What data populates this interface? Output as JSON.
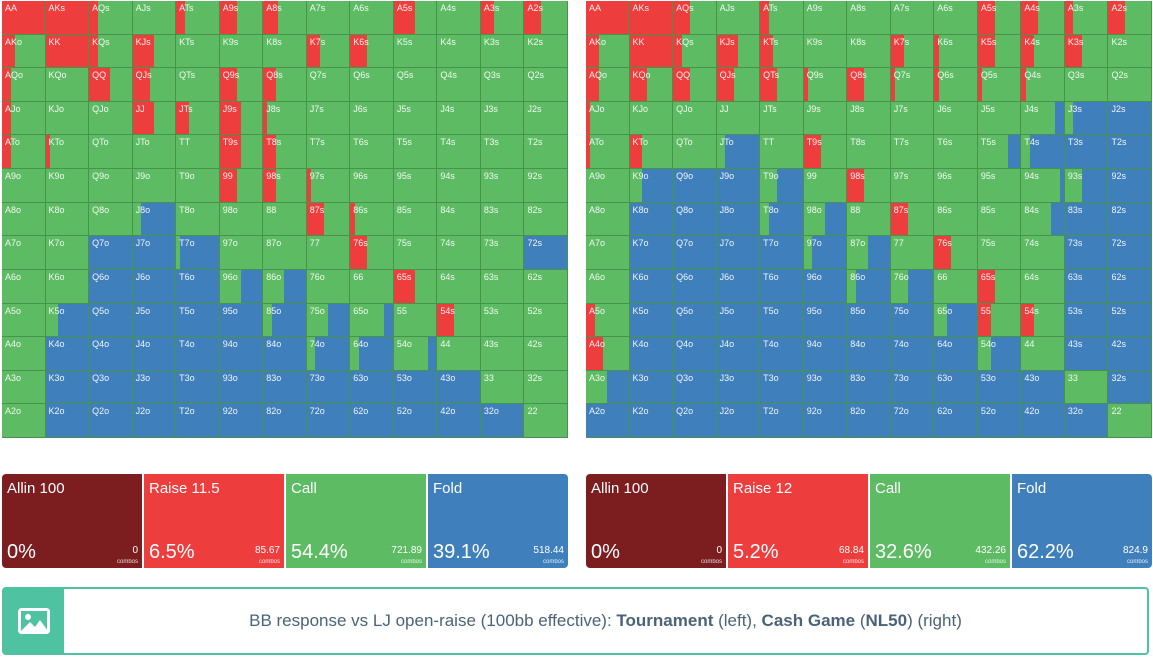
{
  "colors": {
    "allin": "#7c1d1f",
    "raise": "#ee3d3d",
    "call": "#5cbb63",
    "fold": "#3f7fbc",
    "accent": "#4fc3a1",
    "caption_text": "#4a6378"
  },
  "hand_labels": [
    [
      "AA",
      "AKs",
      "AQs",
      "AJs",
      "ATs",
      "A9s",
      "A8s",
      "A7s",
      "A6s",
      "A5s",
      "A4s",
      "A3s",
      "A2s"
    ],
    [
      "AKo",
      "KK",
      "KQs",
      "KJs",
      "KTs",
      "K9s",
      "K8s",
      "K7s",
      "K6s",
      "K5s",
      "K4s",
      "K3s",
      "K2s"
    ],
    [
      "AQo",
      "KQo",
      "QQ",
      "QJs",
      "QTs",
      "Q9s",
      "Q8s",
      "Q7s",
      "Q6s",
      "Q5s",
      "Q4s",
      "Q3s",
      "Q2s"
    ],
    [
      "AJo",
      "KJo",
      "QJo",
      "JJ",
      "JTs",
      "J9s",
      "J8s",
      "J7s",
      "J6s",
      "J5s",
      "J4s",
      "J3s",
      "J2s"
    ],
    [
      "ATo",
      "KTo",
      "QTo",
      "JTo",
      "TT",
      "T9s",
      "T8s",
      "T7s",
      "T6s",
      "T5s",
      "T4s",
      "T3s",
      "T2s"
    ],
    [
      "A9o",
      "K9o",
      "Q9o",
      "J9o",
      "T9o",
      "99",
      "98s",
      "97s",
      "96s",
      "95s",
      "94s",
      "93s",
      "92s"
    ],
    [
      "A8o",
      "K8o",
      "Q8o",
      "J8o",
      "T8o",
      "98o",
      "88",
      "87s",
      "86s",
      "85s",
      "84s",
      "83s",
      "82s"
    ],
    [
      "A7o",
      "K7o",
      "Q7o",
      "J7o",
      "T7o",
      "97o",
      "87o",
      "77",
      "76s",
      "75s",
      "74s",
      "73s",
      "72s"
    ],
    [
      "A6o",
      "K6o",
      "Q6o",
      "J6o",
      "T6o",
      "96o",
      "86o",
      "76o",
      "66",
      "65s",
      "64s",
      "63s",
      "62s"
    ],
    [
      "A5o",
      "K5o",
      "Q5o",
      "J5o",
      "T5o",
      "95o",
      "85o",
      "75o",
      "65o",
      "55",
      "54s",
      "53s",
      "52s"
    ],
    [
      "A4o",
      "K4o",
      "Q4o",
      "J4o",
      "T4o",
      "94o",
      "84o",
      "74o",
      "64o",
      "54o",
      "44",
      "43s",
      "42s"
    ],
    [
      "A3o",
      "K3o",
      "Q3o",
      "J3o",
      "T3o",
      "93o",
      "83o",
      "73o",
      "63o",
      "53o",
      "43o",
      "33",
      "32s"
    ],
    [
      "A2o",
      "K2o",
      "Q2o",
      "J2o",
      "T2o",
      "92o",
      "82o",
      "72o",
      "62o",
      "52o",
      "42o",
      "32o",
      "22"
    ]
  ],
  "tournament": {
    "label": "Tournament",
    "actions": [
      {
        "name": "Allin 100",
        "pct": "0%",
        "combos": "0",
        "combos_word": "combos",
        "key": "allin"
      },
      {
        "name": "Raise 11.5",
        "pct": "6.5%",
        "combos": "85.67",
        "combos_word": "combos",
        "key": "raise"
      },
      {
        "name": "Call",
        "pct": "54.4%",
        "combos": "721.89",
        "combos_word": "combos",
        "key": "call"
      },
      {
        "name": "Fold",
        "pct": "39.1%",
        "combos": "518.44",
        "combos_word": "combos",
        "key": "fold"
      }
    ],
    "raise_freq": [
      [
        1,
        1,
        0.2,
        0,
        0.2,
        0.4,
        0.35,
        0,
        0,
        0.5,
        0,
        0.3,
        0.4
      ],
      [
        0.3,
        1,
        0.2,
        0.5,
        0,
        0,
        0,
        0.3,
        0.4,
        0,
        0,
        0,
        0
      ],
      [
        0.2,
        0,
        0.5,
        0.4,
        0,
        0.4,
        0.3,
        0,
        0,
        0,
        0,
        0,
        0
      ],
      [
        0.2,
        0,
        0,
        0.5,
        0.3,
        0.5,
        0.1,
        0,
        0,
        0,
        0,
        0,
        0
      ],
      [
        0.2,
        0.1,
        0,
        0,
        0,
        0.5,
        0.3,
        0,
        0,
        0,
        0,
        0,
        0
      ],
      [
        0,
        0,
        0,
        0,
        0,
        0.4,
        0.3,
        0.1,
        0,
        0,
        0,
        0,
        0
      ],
      [
        0,
        0,
        0,
        0,
        0,
        0,
        0,
        0.4,
        0.1,
        0,
        0,
        0,
        0
      ],
      [
        0,
        0,
        0,
        0,
        0,
        0,
        0,
        0,
        0.4,
        0,
        0,
        0,
        0
      ],
      [
        0,
        0,
        0,
        0,
        0,
        0,
        0,
        0,
        0,
        0.5,
        0,
        0,
        0
      ],
      [
        0,
        0,
        0,
        0,
        0,
        0,
        0,
        0,
        0,
        0,
        0.4,
        0,
        0
      ],
      [
        0,
        0,
        0,
        0,
        0,
        0,
        0,
        0,
        0,
        0,
        0,
        0,
        0
      ],
      [
        0,
        0,
        0,
        0,
        0,
        0,
        0,
        0,
        0,
        0,
        0,
        0,
        0
      ],
      [
        0,
        0,
        0,
        0,
        0,
        0,
        0,
        0,
        0,
        0,
        0,
        0,
        0
      ]
    ],
    "fold_freq": [
      [
        0,
        0,
        0,
        0,
        0,
        0,
        0,
        0,
        0,
        0,
        0,
        0,
        0
      ],
      [
        0,
        0,
        0,
        0,
        0,
        0,
        0,
        0,
        0,
        0,
        0,
        0,
        0
      ],
      [
        0,
        0,
        0,
        0,
        0,
        0,
        0,
        0,
        0,
        0,
        0,
        0,
        0
      ],
      [
        0,
        0,
        0,
        0,
        0,
        0,
        0,
        0,
        0,
        0,
        0,
        0,
        0
      ],
      [
        0,
        0,
        0,
        0,
        0,
        0,
        0,
        0,
        0,
        0,
        0,
        0,
        0
      ],
      [
        0,
        0,
        0,
        0,
        0,
        0,
        0,
        0,
        0,
        0,
        0,
        0,
        0
      ],
      [
        0,
        0,
        0,
        0.8,
        0,
        0,
        0,
        0,
        0,
        0,
        0,
        0,
        0
      ],
      [
        0,
        0,
        1,
        1,
        0.9,
        0,
        0,
        0,
        0,
        0,
        0,
        0,
        1
      ],
      [
        0,
        0,
        1,
        1,
        1,
        0.5,
        0.5,
        0,
        0,
        0,
        0,
        0,
        0
      ],
      [
        0,
        0.7,
        1,
        1,
        1,
        1,
        0.8,
        0.5,
        0.2,
        0,
        0,
        0,
        0
      ],
      [
        0,
        1,
        1,
        1,
        1,
        1,
        1,
        0.8,
        0.8,
        0.2,
        0,
        0,
        0
      ],
      [
        0,
        1,
        1,
        1,
        1,
        1,
        1,
        1,
        1,
        1,
        1,
        0,
        0
      ],
      [
        0,
        1,
        1,
        1,
        1,
        1,
        1,
        1,
        1,
        1,
        1,
        1,
        0
      ]
    ]
  },
  "cash": {
    "label": "Cash Game",
    "stake": "NL50",
    "actions": [
      {
        "name": "Allin 100",
        "pct": "0%",
        "combos": "0",
        "combos_word": "combos",
        "key": "allin"
      },
      {
        "name": "Raise 12",
        "pct": "5.2%",
        "combos": "68.84",
        "combos_word": "combos",
        "key": "raise"
      },
      {
        "name": "Call",
        "pct": "32.6%",
        "combos": "432.26",
        "combos_word": "combos",
        "key": "call"
      },
      {
        "name": "Fold",
        "pct": "62.2%",
        "combos": "824.9",
        "combos_word": "combos",
        "key": "fold"
      }
    ],
    "raise_freq": [
      [
        1,
        1,
        0.4,
        0,
        0.2,
        0,
        0,
        0,
        0,
        0.4,
        0.4,
        0.2,
        0.4
      ],
      [
        0.3,
        1,
        0.2,
        0.5,
        0.3,
        0,
        0,
        0.3,
        0.1,
        0.4,
        0.3,
        0.4,
        0
      ],
      [
        0.3,
        0.4,
        0.4,
        0.4,
        0.4,
        0.1,
        0.4,
        0.1,
        0.1,
        0.1,
        0.1,
        0,
        0
      ],
      [
        0.1,
        0,
        0,
        0,
        0,
        0,
        0,
        0,
        0,
        0,
        0,
        0,
        0
      ],
      [
        0.1,
        0.3,
        0,
        0,
        0,
        0.4,
        0,
        0,
        0,
        0,
        0,
        0,
        0
      ],
      [
        0,
        0,
        0,
        0,
        0,
        0,
        0.4,
        0,
        0,
        0,
        0,
        0,
        0
      ],
      [
        0,
        0,
        0,
        0,
        0,
        0,
        0,
        0.4,
        0,
        0,
        0,
        0,
        0
      ],
      [
        0,
        0,
        0,
        0,
        0,
        0,
        0,
        0,
        0.4,
        0,
        0,
        0,
        0
      ],
      [
        0,
        0,
        0,
        0,
        0,
        0,
        0,
        0,
        0,
        0.4,
        0,
        0,
        0
      ],
      [
        0.2,
        0,
        0,
        0,
        0,
        0,
        0,
        0,
        0,
        0.3,
        0.3,
        0,
        0
      ],
      [
        0.4,
        0,
        0,
        0,
        0,
        0,
        0,
        0,
        0,
        0,
        0,
        0,
        0
      ],
      [
        0,
        0,
        0,
        0,
        0,
        0,
        0,
        0,
        0,
        0,
        0,
        0,
        0
      ],
      [
        0,
        0,
        0,
        0,
        0,
        0,
        0,
        0,
        0,
        0,
        0,
        0,
        0
      ]
    ],
    "fold_freq": [
      [
        0,
        0,
        0,
        0,
        0,
        0,
        0,
        0,
        0,
        0,
        0,
        0,
        0
      ],
      [
        0,
        0,
        0,
        0,
        0,
        0,
        0,
        0,
        0,
        0,
        0,
        0,
        0
      ],
      [
        0,
        0,
        0,
        0,
        0,
        0,
        0,
        0,
        0,
        0,
        0,
        0,
        0
      ],
      [
        0,
        0,
        0,
        0,
        0,
        0,
        0,
        0,
        0,
        0,
        0.2,
        0.8,
        1
      ],
      [
        0,
        0,
        0,
        0.8,
        0,
        0,
        0,
        0,
        0,
        0.3,
        0.8,
        1,
        1
      ],
      [
        0,
        0.7,
        1,
        1,
        0.6,
        0,
        0,
        0,
        0,
        0,
        0.1,
        0.6,
        1
      ],
      [
        0,
        1,
        1,
        1,
        0.8,
        0.5,
        0,
        0,
        0,
        0,
        0.3,
        1,
        1
      ],
      [
        0,
        1,
        1,
        1,
        1,
        0.8,
        0.5,
        0,
        0,
        0,
        0,
        1,
        1
      ],
      [
        0,
        1,
        1,
        1,
        1,
        1,
        0.8,
        0.6,
        0,
        0,
        0,
        1,
        1
      ],
      [
        0,
        1,
        1,
        1,
        1,
        1,
        1,
        1,
        0.7,
        0,
        0,
        1,
        1
      ],
      [
        0,
        1,
        1,
        1,
        1,
        1,
        1,
        1,
        1,
        0.7,
        0,
        1,
        1
      ],
      [
        0.5,
        1,
        1,
        1,
        1,
        1,
        1,
        1,
        1,
        1,
        1,
        0,
        1
      ],
      [
        1,
        1,
        1,
        1,
        1,
        1,
        1,
        1,
        1,
        1,
        1,
        1,
        0
      ]
    ]
  },
  "caption": {
    "icon": "image-icon",
    "prefix": "BB response vs LJ open-raise (100bb effective): ",
    "tournament": "Tournament",
    "left_note": " (left), ",
    "cash": "Cash Game",
    "open_paren": " (",
    "stake": "NL50",
    "close_paren": ")",
    "right_note": " (right)"
  }
}
